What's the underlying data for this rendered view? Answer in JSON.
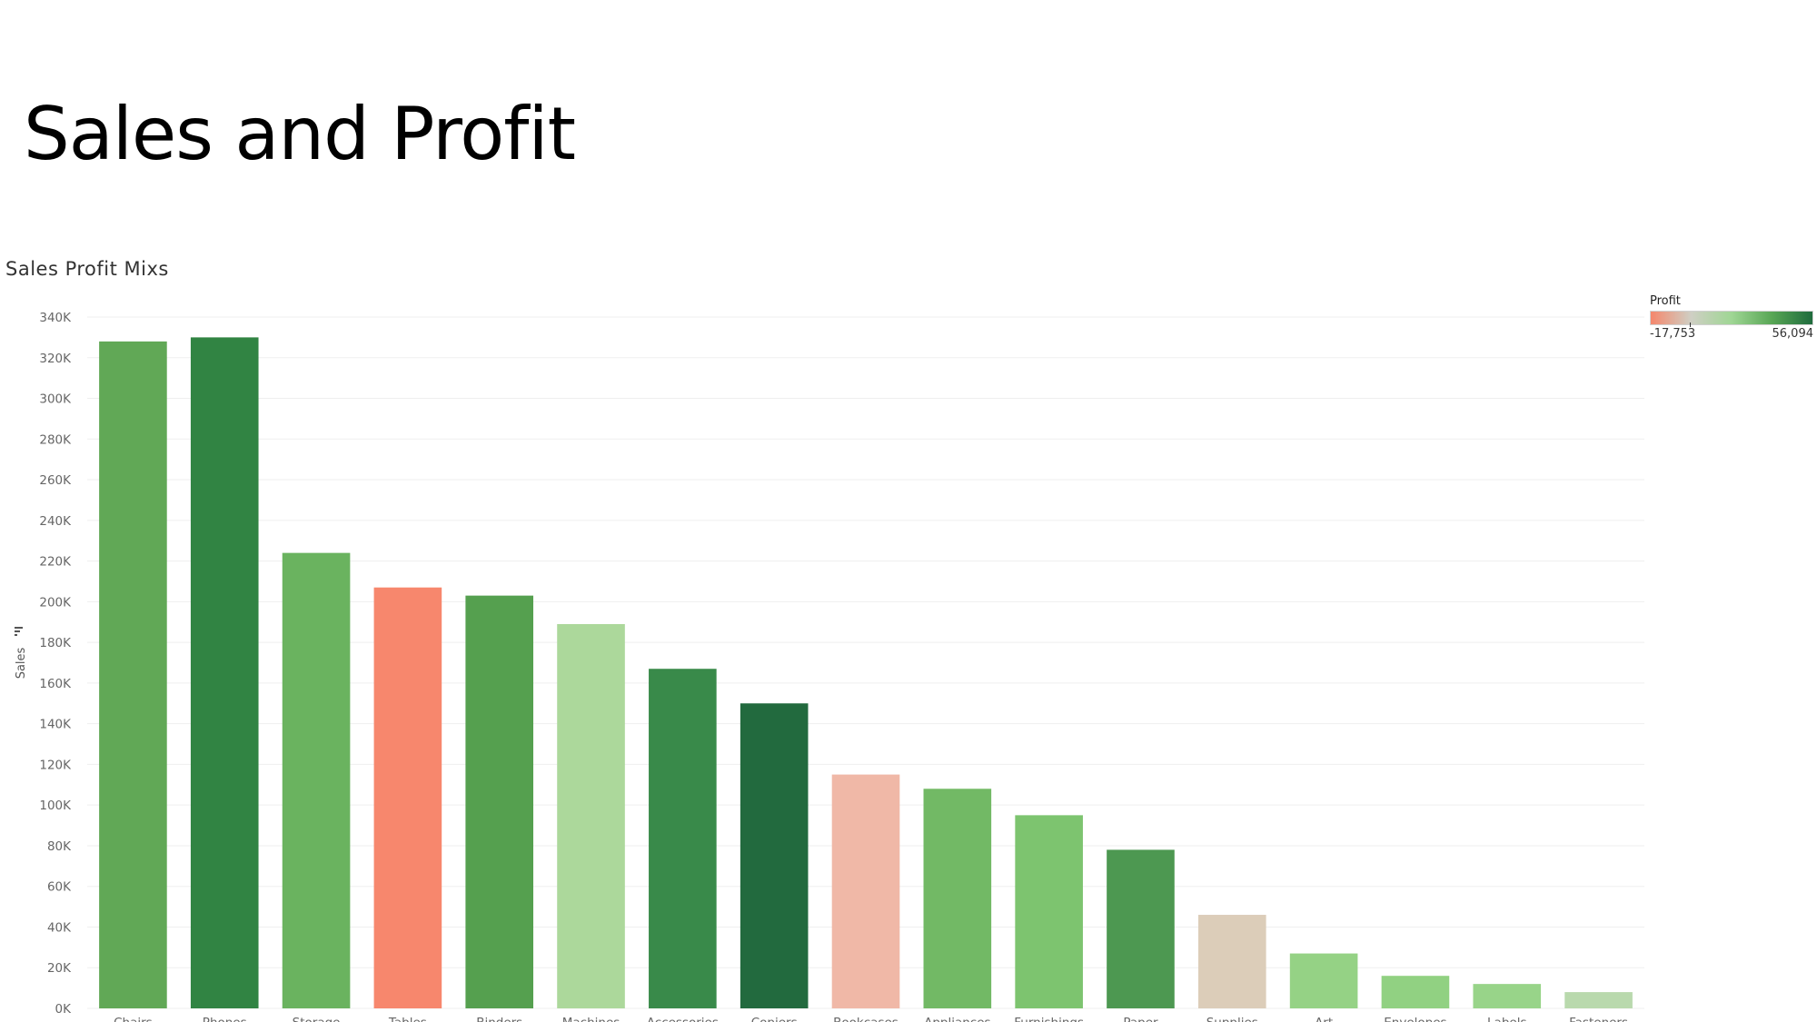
{
  "slide": {
    "title": "Sales and Profit"
  },
  "sheet": {
    "title": "Sales Profit Mixs"
  },
  "legend": {
    "title": "Profit",
    "min_label": "-17,753",
    "max_label": "56,094",
    "colors": [
      "#f5876c",
      "#cfcfc4",
      "#9fd694",
      "#58a655",
      "#1f6b3d"
    ]
  },
  "chart_data": {
    "type": "bar",
    "ylabel": "Sales",
    "xlabel": "",
    "ylim": [
      0,
      340000
    ],
    "yticks": [
      0,
      20000,
      40000,
      60000,
      80000,
      100000,
      120000,
      140000,
      160000,
      180000,
      200000,
      220000,
      240000,
      260000,
      280000,
      300000,
      320000,
      340000
    ],
    "ytick_labels": [
      "0K",
      "20K",
      "40K",
      "60K",
      "80K",
      "100K",
      "120K",
      "140K",
      "160K",
      "180K",
      "200K",
      "220K",
      "240K",
      "260K",
      "280K",
      "300K",
      "320K",
      "340K"
    ],
    "grid": true,
    "categories": [
      "Chairs",
      "Phones",
      "Storage",
      "Tables",
      "Binders",
      "Machines",
      "Accessories",
      "Copiers",
      "Bookcases",
      "Appliances",
      "Furnishings",
      "Paper",
      "Supplies",
      "Art",
      "Envelopes",
      "Labels",
      "Fasteners"
    ],
    "values": [
      328000,
      330000,
      224000,
      207000,
      203000,
      189000,
      167000,
      150000,
      115000,
      108000,
      95000,
      78000,
      46000,
      27000,
      16000,
      12000,
      8000
    ],
    "bar_colors": [
      "#61a856",
      "#318443",
      "#6ab35f",
      "#f7876d",
      "#55a04f",
      "#acd89b",
      "#398a4a",
      "#226a3e",
      "#f0b8a7",
      "#72b965",
      "#7dc46f",
      "#4d9851",
      "#dccdb9",
      "#95d285",
      "#91d182",
      "#98d489",
      "#b9d9ad"
    ]
  }
}
